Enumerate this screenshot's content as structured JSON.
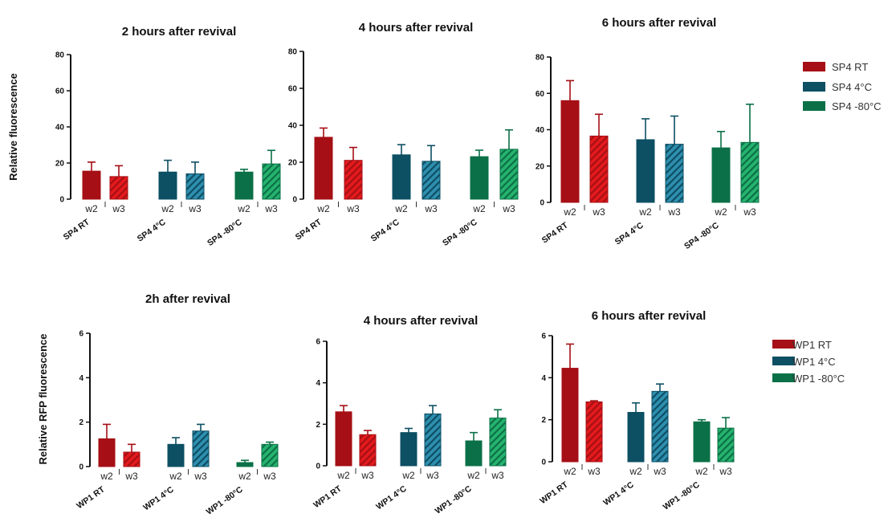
{
  "figure": {
    "colors": {
      "rt_dark": "#a50f15",
      "rt_light": "#e31a1c",
      "c4_dark": "#0d4f63",
      "c4_light": "#2f8fb0",
      "c80_dark": "#0b7047",
      "c80_light": "#26b36e"
    },
    "top_ylabel": "Relative fluorescence",
    "bottom_ylabel": "Relative RFP fluorescence",
    "legend_top": [
      "SP4 RT",
      "SP4 4°C",
      "SP4 -80°C"
    ],
    "legend_bottom": [
      "WP1 RT",
      "WP1 4°C",
      "WP1 -80°C"
    ]
  },
  "chart_data": [
    {
      "type": "bar",
      "title": "2 hours after revival",
      "ylabel": "Relative fluorescence",
      "ylim": [
        0,
        80
      ],
      "yticks": [
        0,
        20,
        40,
        60,
        80
      ],
      "groups": [
        "SP4 RT",
        "SP4 4°C",
        "SP4 -80°C"
      ],
      "bar_labels": [
        "w2",
        "w3"
      ],
      "series": [
        {
          "name": "w2",
          "values": [
            15.5,
            15,
            15
          ],
          "errors": [
            5,
            6.5,
            1.5
          ]
        },
        {
          "name": "w3",
          "values": [
            12.5,
            14,
            19.5
          ],
          "errors": [
            6,
            6.5,
            7.5
          ]
        }
      ]
    },
    {
      "type": "bar",
      "title": "4 hours after revival",
      "ylim": [
        0,
        80
      ],
      "yticks": [
        0,
        20,
        40,
        60,
        80
      ],
      "groups": [
        "SP4 RT",
        "SP4 4°C",
        "SP4 -80°C"
      ],
      "bar_labels": [
        "w2",
        "w3"
      ],
      "series": [
        {
          "name": "w2",
          "values": [
            33.5,
            24,
            23
          ],
          "errors": [
            5,
            5.5,
            3.5
          ]
        },
        {
          "name": "w3",
          "values": [
            21,
            20.5,
            27
          ],
          "errors": [
            7,
            8.5,
            10.5
          ]
        }
      ]
    },
    {
      "type": "bar",
      "title": "6 hours after revival",
      "ylim": [
        0,
        80
      ],
      "yticks": [
        0,
        20,
        40,
        60,
        80
      ],
      "groups": [
        "SP4 RT",
        "SP4 4°C",
        "SP4 -80°C"
      ],
      "bar_labels": [
        "w2",
        "w3"
      ],
      "series": [
        {
          "name": "w2",
          "values": [
            56,
            34.5,
            30
          ],
          "errors": [
            11,
            11.5,
            9
          ]
        },
        {
          "name": "w3",
          "values": [
            36.5,
            32,
            33
          ],
          "errors": [
            12,
            15.5,
            21
          ]
        }
      ]
    },
    {
      "type": "bar",
      "title": "2h after revival",
      "ylabel": "Relative RFP fluorescence",
      "ylim": [
        0,
        6
      ],
      "yticks": [
        0,
        2,
        4,
        6
      ],
      "groups": [
        "WP1 RT",
        "WP1 4°C",
        "WP1 -80°C"
      ],
      "bar_labels": [
        "w2",
        "w3"
      ],
      "series": [
        {
          "name": "w2",
          "values": [
            1.25,
            1.0,
            0.18
          ],
          "errors": [
            0.65,
            0.3,
            0.1
          ]
        },
        {
          "name": "w3",
          "values": [
            0.65,
            1.6,
            1.0
          ],
          "errors": [
            0.35,
            0.3,
            0.1
          ]
        }
      ]
    },
    {
      "type": "bar",
      "title": "4 hours after revival",
      "ylim": [
        0,
        6
      ],
      "yticks": [
        0,
        2,
        4,
        6
      ],
      "groups": [
        "WP1 RT",
        "WP1 4°C",
        "WP1 -80°C"
      ],
      "bar_labels": [
        "w2",
        "w3"
      ],
      "series": [
        {
          "name": "w2",
          "values": [
            2.6,
            1.6,
            1.2
          ],
          "errors": [
            0.3,
            0.2,
            0.4
          ]
        },
        {
          "name": "w3",
          "values": [
            1.5,
            2.5,
            2.3
          ],
          "errors": [
            0.2,
            0.4,
            0.4
          ]
        }
      ]
    },
    {
      "type": "bar",
      "title": "6 hours after revival",
      "ylim": [
        0,
        6
      ],
      "yticks": [
        0,
        2,
        4,
        6
      ],
      "groups": [
        "WP1 RT",
        "WP1 4°C",
        "WP1 -80°C"
      ],
      "bar_labels": [
        "w2",
        "w3"
      ],
      "series": [
        {
          "name": "w2",
          "values": [
            4.45,
            2.35,
            1.9
          ],
          "errors": [
            1.15,
            0.45,
            0.1
          ]
        },
        {
          "name": "w3",
          "values": [
            2.85,
            3.35,
            1.6
          ],
          "errors": [
            0.05,
            0.35,
            0.5
          ]
        }
      ]
    }
  ]
}
